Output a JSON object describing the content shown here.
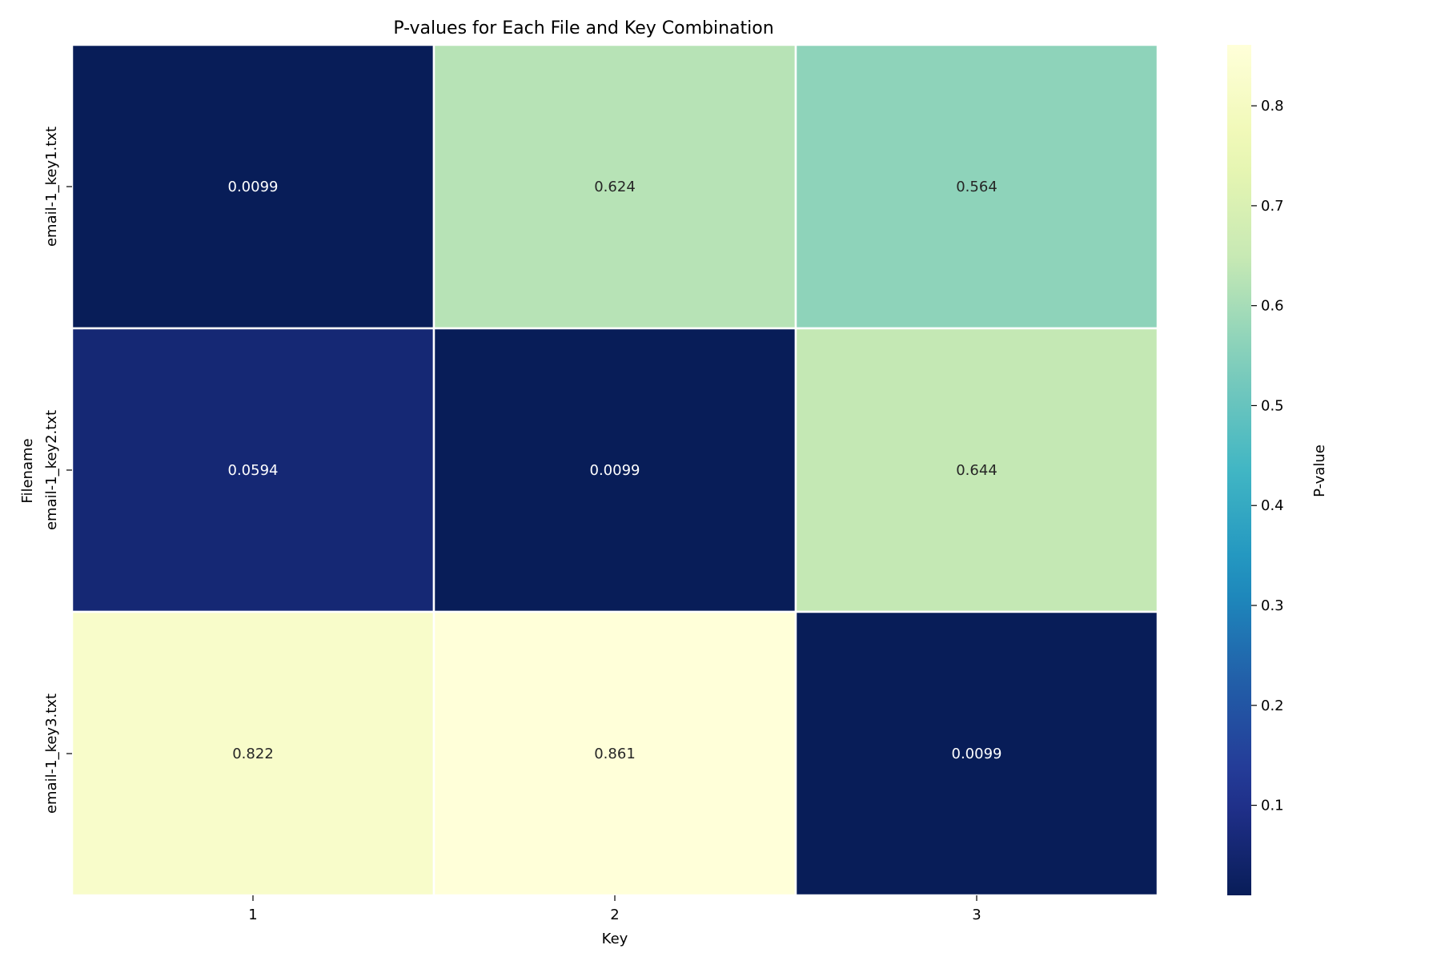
{
  "chart_data": {
    "type": "heatmap",
    "title": "P-values for Each File and Key Combination",
    "xlabel": "Key",
    "ylabel": "Filename",
    "colorbar_label": "P-value",
    "colormap": "YlGnBu",
    "x_categories": [
      "1",
      "2",
      "3"
    ],
    "y_categories": [
      "email-1_key1.txt",
      "email-1_key2.txt",
      "email-1_key3.txt"
    ],
    "values": [
      [
        0.0099,
        0.624,
        0.564
      ],
      [
        0.0594,
        0.0099,
        0.644
      ],
      [
        0.822,
        0.861,
        0.0099
      ]
    ],
    "value_labels": [
      [
        "0.0099",
        "0.624",
        "0.564"
      ],
      [
        "0.0594",
        "0.0099",
        "0.644"
      ],
      [
        "0.822",
        "0.861",
        "0.0099"
      ]
    ],
    "colorbar_range": [
      0.0099,
      0.861
    ],
    "colorbar_ticks": [
      "0.1",
      "0.2",
      "0.3",
      "0.4",
      "0.5",
      "0.6",
      "0.7",
      "0.8"
    ],
    "grid": false
  }
}
